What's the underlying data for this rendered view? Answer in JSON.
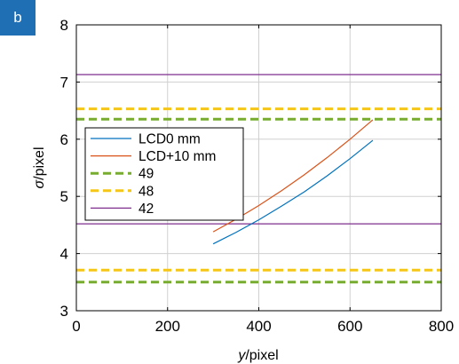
{
  "panel_label": "b",
  "chart_data": {
    "type": "line",
    "title": "",
    "xlabel": "y/pixel",
    "xlabel_italic": "y",
    "xlabel_rest": "/pixel",
    "ylabel": "σ/pixel",
    "ylabel_italic": "σ",
    "ylabel_rest": "/pixel",
    "xlim": [
      0,
      800
    ],
    "ylim": [
      3,
      8
    ],
    "xticks": [
      0,
      200,
      400,
      600,
      800
    ],
    "yticks": [
      3,
      4,
      5,
      6,
      7,
      8
    ],
    "grid": true,
    "legend_position": "left-middle",
    "series": [
      {
        "name": "LCD0 mm",
        "color": "#0072bd",
        "style": "solid",
        "x": [
          300,
          350,
          400,
          450,
          500,
          550,
          600,
          650
        ],
        "y": [
          4.17,
          4.37,
          4.59,
          4.83,
          5.08,
          5.36,
          5.66,
          5.98
        ]
      },
      {
        "name": "LCD+10 mm",
        "color": "#d95319",
        "style": "solid",
        "x": [
          300,
          350,
          400,
          450,
          500,
          550,
          600,
          650
        ],
        "y": [
          4.38,
          4.6,
          4.84,
          5.1,
          5.38,
          5.68,
          6.0,
          6.34
        ]
      },
      {
        "name": "49",
        "color": "#77ac30",
        "style": "dashed",
        "hlines": [
          3.5,
          6.35
        ]
      },
      {
        "name": "48",
        "color": "#f5c518",
        "style": "dashed",
        "hlines": [
          3.71,
          6.53
        ]
      },
      {
        "name": "42",
        "color": "#7e2f8e",
        "style": "solid",
        "hlines": [
          4.52,
          7.13
        ]
      }
    ]
  }
}
